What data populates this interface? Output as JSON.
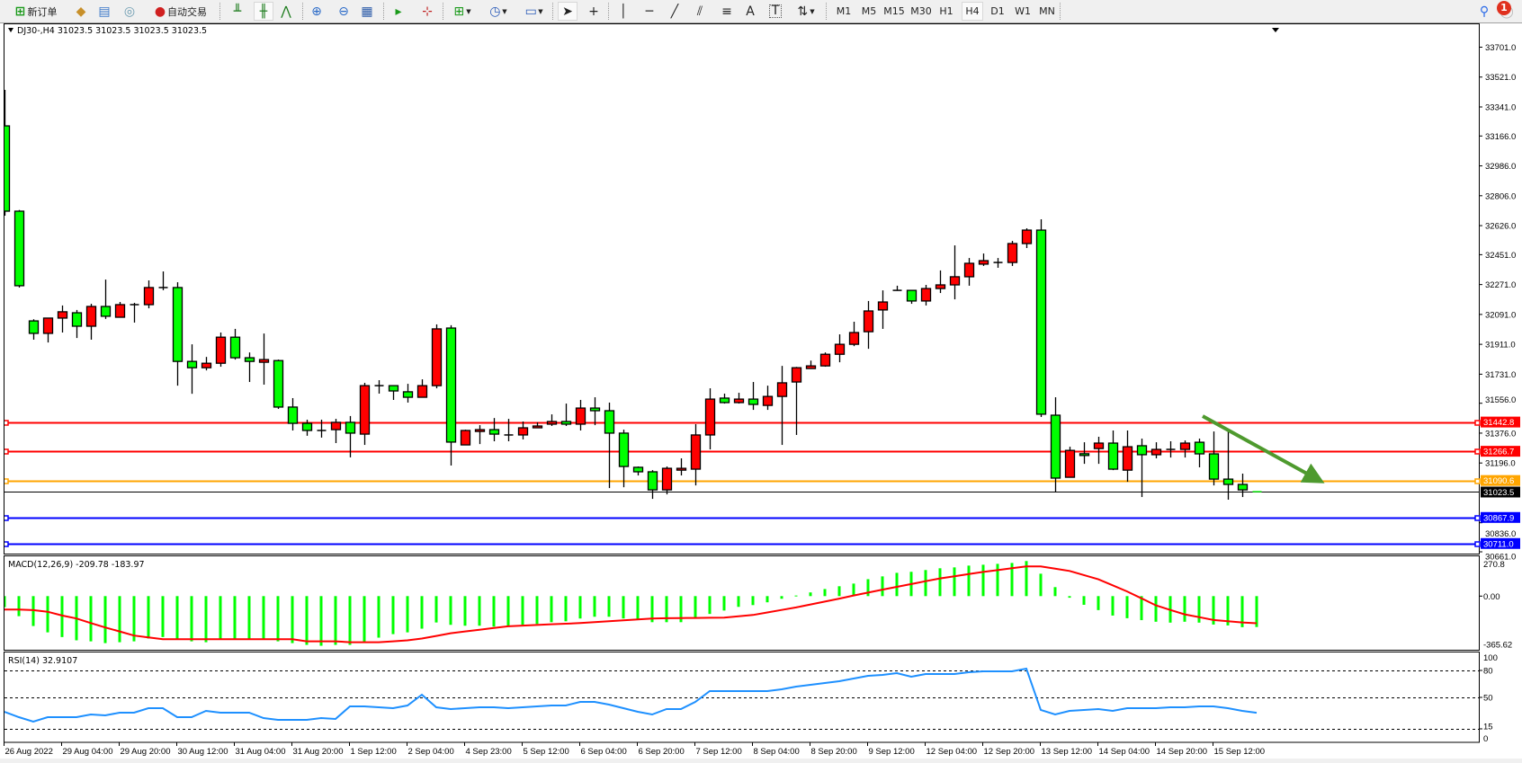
{
  "toolbar": {
    "new_order_label": "新订单",
    "auto_trading_label": "自动交易",
    "timeframes": [
      "M1",
      "M5",
      "M15",
      "M30",
      "H1",
      "H4",
      "D1",
      "W1",
      "MN"
    ],
    "selected_timeframe": "H4",
    "notification_count": "1",
    "tools": [
      "bar-chart",
      "candlestick-chart",
      "line-chart",
      "zoom-in",
      "zoom-out",
      "tile-windows",
      "auto-scroll",
      "chart-shift",
      "new-window",
      "clock",
      "template",
      "cursor",
      "crosshair",
      "vertical-line",
      "horizontal-line",
      "trend-line",
      "equidistant-channel",
      "fibonacci",
      "text-label",
      "text-box",
      "arrows"
    ]
  },
  "chart": {
    "title": "DJ30-,H4  31023.5 31023.5 31023.5 31023.5",
    "up_color": "#ff0000",
    "down_color": "#00ff00",
    "price_axis_labels": [
      "33701.0",
      "33521.0",
      "33341.0",
      "33166.0",
      "32986.0",
      "32806.0",
      "32626.0",
      "32451.0",
      "32271.0",
      "32091.0",
      "31911.0",
      "31731.0",
      "31556.0",
      "31376.0",
      "31196.0",
      "30836.0",
      "30661.0"
    ],
    "time_axis_labels": [
      "26 Aug 2022",
      "29 Aug 04:00",
      "29 Aug 20:00",
      "30 Aug 12:00",
      "31 Aug 04:00",
      "31 Aug 20:00",
      "1 Sep 12:00",
      "2 Sep 04:00",
      "4 Sep 23:00",
      "5 Sep 12:00",
      "6 Sep 04:00",
      "6 Sep 20:00",
      "7 Sep 12:00",
      "8 Sep 04:00",
      "8 Sep 20:00",
      "9 Sep 12:00",
      "12 Sep 04:00",
      "12 Sep 20:00",
      "13 Sep 12:00",
      "14 Sep 04:00",
      "14 Sep 20:00",
      "15 Sep 12:00"
    ],
    "horizontal_lines": [
      {
        "price": 31442.8,
        "label": "31442.8",
        "color": "#ff0000"
      },
      {
        "price": 31266.7,
        "label": "31266.7",
        "color": "#ff0000"
      },
      {
        "price": 31090.6,
        "label": "31090.6",
        "color": "#ffa500"
      },
      {
        "price": 30867.9,
        "label": "30867.9",
        "color": "#0000ff"
      },
      {
        "price": 30711.0,
        "label": "30711.0",
        "color": "#0000ff"
      }
    ],
    "bid": {
      "price": 31023.5,
      "label": "31023.5",
      "color": "#000000"
    },
    "trend_arrow_color": "#4e9a2e"
  },
  "chart_data": {
    "type": "candlestick",
    "symbol": "DJ30-",
    "timeframe": "H4",
    "ylim": [
      30661.0,
      33701.0
    ],
    "ohlc": [
      [
        33227,
        33444,
        32686,
        32713
      ],
      [
        32713,
        32720,
        32253,
        32264
      ],
      [
        32052,
        32062,
        31939,
        31977
      ],
      [
        31977,
        32069,
        31922,
        32069
      ],
      [
        32069,
        32145,
        31982,
        32107
      ],
      [
        32101,
        32118,
        31949,
        32020
      ],
      [
        32020,
        32155,
        31939,
        32139
      ],
      [
        32139,
        32301,
        32064,
        32080
      ],
      [
        32074,
        32166,
        32074,
        32150
      ],
      [
        32150,
        32161,
        32042,
        32150
      ],
      [
        32150,
        32296,
        32128,
        32253
      ],
      [
        32253,
        32350,
        32237,
        32253
      ],
      [
        32253,
        32285,
        31662,
        31808
      ],
      [
        31808,
        31911,
        31613,
        31770
      ],
      [
        31770,
        31835,
        31754,
        31797
      ],
      [
        31797,
        31982,
        31776,
        31954
      ],
      [
        31954,
        32004,
        31819,
        31830
      ],
      [
        31830,
        31862,
        31684,
        31808
      ],
      [
        31803,
        31976,
        31668,
        31819
      ],
      [
        31813,
        31819,
        31522,
        31533
      ],
      [
        31533,
        31587,
        31392,
        31435
      ],
      [
        31435,
        31457,
        31360,
        31392
      ],
      [
        31392,
        31457,
        31349,
        31392
      ],
      [
        31397,
        31462,
        31316,
        31441
      ],
      [
        31441,
        31479,
        31230,
        31376
      ],
      [
        31370,
        31679,
        31305,
        31662
      ],
      [
        31662,
        31695,
        31614,
        31662
      ],
      [
        31662,
        31665,
        31576,
        31630
      ],
      [
        31625,
        31673,
        31560,
        31592
      ],
      [
        31592,
        31700,
        31592,
        31662
      ],
      [
        31662,
        32031,
        31646,
        32004
      ],
      [
        32009,
        32026,
        31181,
        31322
      ],
      [
        31305,
        31397,
        31305,
        31392
      ],
      [
        31386,
        31424,
        31310,
        31397
      ],
      [
        31397,
        31467,
        31327,
        31370
      ],
      [
        31365,
        31462,
        31327,
        31365
      ],
      [
        31365,
        31446,
        31338,
        31408
      ],
      [
        31408,
        31441,
        31408,
        31419
      ],
      [
        31430,
        31489,
        31419,
        31446
      ],
      [
        31446,
        31554,
        31419,
        31430
      ],
      [
        31430,
        31576,
        31392,
        31527
      ],
      [
        31527,
        31592,
        31424,
        31511
      ],
      [
        31511,
        31560,
        31045,
        31376
      ],
      [
        31376,
        31397,
        31050,
        31175
      ],
      [
        31170,
        31175,
        31121,
        31143
      ],
      [
        31143,
        31153,
        30980,
        31034
      ],
      [
        31034,
        31175,
        31007,
        31164
      ],
      [
        31153,
        31224,
        31121,
        31164
      ],
      [
        31159,
        31430,
        31061,
        31365
      ],
      [
        31365,
        31646,
        31278,
        31581
      ],
      [
        31587,
        31614,
        31554,
        31560
      ],
      [
        31560,
        31619,
        31554,
        31581
      ],
      [
        31581,
        31684,
        31516,
        31549
      ],
      [
        31543,
        31662,
        31516,
        31597
      ],
      [
        31597,
        31781,
        31305,
        31679
      ],
      [
        31684,
        31775,
        31365,
        31770
      ],
      [
        31765,
        31813,
        31765,
        31781
      ],
      [
        31781,
        31862,
        31776,
        31851
      ],
      [
        31851,
        31971,
        31803,
        31911
      ],
      [
        31911,
        32047,
        31900,
        31982
      ],
      [
        31987,
        32172,
        31884,
        32112
      ],
      [
        32118,
        32236,
        32004,
        32166
      ],
      [
        32236,
        32264,
        32236,
        32236
      ],
      [
        32236,
        32236,
        32155,
        32172
      ],
      [
        32172,
        32269,
        32145,
        32247
      ],
      [
        32247,
        32356,
        32220,
        32269
      ],
      [
        32269,
        32507,
        32182,
        32318
      ],
      [
        32318,
        32431,
        32264,
        32399
      ],
      [
        32394,
        32458,
        32383,
        32415
      ],
      [
        32404,
        32431,
        32372,
        32404
      ],
      [
        32404,
        32534,
        32383,
        32518
      ],
      [
        32518,
        32610,
        32491,
        32599
      ],
      [
        32599,
        32664,
        31473,
        31490
      ],
      [
        31484,
        31592,
        31023,
        31105
      ],
      [
        31110,
        31294,
        31110,
        31272
      ],
      [
        31252,
        31321,
        31191,
        31250
      ],
      [
        31283,
        31354,
        31191,
        31316
      ],
      [
        31316,
        31392,
        31153,
        31159
      ],
      [
        31153,
        31392,
        31083,
        31294
      ],
      [
        31300,
        31343,
        30991,
        31246
      ],
      [
        31246,
        31321,
        31224,
        31278
      ],
      [
        31278,
        31327,
        31229,
        31278
      ],
      [
        31278,
        31332,
        31229,
        31316
      ],
      [
        31321,
        31343,
        31170,
        31251
      ],
      [
        31251,
        31386,
        31061,
        31099
      ],
      [
        31099,
        31386,
        30975,
        31067
      ],
      [
        31067,
        31132,
        30991,
        31034
      ],
      [
        31023.5,
        31023.5,
        31023.5,
        31023.5
      ]
    ],
    "macd": {
      "label": "MACD(12,26,9) -209.78 -183.97",
      "axis_labels": [
        "270.8",
        "0.00",
        "-365.62"
      ],
      "ylim": [
        -365.62,
        270.8
      ],
      "histogram": [
        -75,
        -136,
        -203,
        -246,
        -278,
        -300,
        -307,
        -319,
        -313,
        -307,
        -288,
        -278,
        -288,
        -307,
        -313,
        -288,
        -288,
        -288,
        -288,
        -307,
        -319,
        -331,
        -337,
        -331,
        -331,
        -313,
        -282,
        -258,
        -246,
        -221,
        -179,
        -195,
        -201,
        -201,
        -207,
        -201,
        -195,
        -189,
        -177,
        -171,
        -152,
        -140,
        -140,
        -152,
        -158,
        -177,
        -177,
        -177,
        -146,
        -121,
        -98,
        -73,
        -61,
        -42,
        -18,
        4,
        25,
        48,
        67,
        85,
        115,
        134,
        158,
        165,
        177,
        189,
        195,
        207,
        213,
        219,
        225,
        238,
        152,
        61,
        -11,
        -59,
        -95,
        -132,
        -150,
        -163,
        -174,
        -180,
        -174,
        -180,
        -193,
        -199,
        -211,
        -209.78
      ],
      "signal": [
        -91,
        -91,
        -95,
        -106,
        -132,
        -152,
        -183,
        -213,
        -240,
        -268,
        -280,
        -292,
        -292,
        -292,
        -292,
        -292,
        -292,
        -292,
        -292,
        -292,
        -292,
        -307,
        -307,
        -307,
        -313,
        -313,
        -313,
        -307,
        -300,
        -288,
        -270,
        -252,
        -240,
        -228,
        -216,
        -205,
        -200,
        -196,
        -191,
        -187,
        -183,
        -177,
        -171,
        -165,
        -158,
        -152,
        -150,
        -149,
        -148,
        -147,
        -146,
        -137,
        -128,
        -111,
        -94,
        -77,
        -57,
        -37,
        -17,
        4,
        24,
        44,
        63,
        82,
        101,
        120,
        135,
        150,
        164,
        176,
        189,
        201,
        201,
        186,
        171,
        143,
        114,
        73,
        32,
        -15,
        -63,
        -94,
        -124,
        -143,
        -162,
        -171,
        -179,
        -183.97
      ],
      "histogram_color": "#00ff00",
      "signal_color": "#ff0000"
    },
    "rsi": {
      "label": "RSI(14) 32.9107",
      "axis_labels": [
        "100",
        "80",
        "50",
        "15",
        "0"
      ],
      "levels": [
        80,
        50,
        15
      ],
      "ylim": [
        0,
        100
      ],
      "values": [
        34,
        28,
        23,
        28,
        28,
        28,
        31,
        30,
        33,
        33,
        38,
        38,
        28,
        28,
        35,
        33,
        33,
        33,
        27,
        25,
        25,
        25,
        27,
        26,
        40,
        40,
        39,
        38,
        41,
        53,
        39,
        37,
        38,
        39,
        39,
        38,
        39,
        40,
        41,
        41,
        45,
        45,
        42,
        38,
        34,
        31,
        37,
        37,
        45,
        57,
        57,
        57,
        57,
        57,
        59,
        62,
        64,
        66,
        68,
        71,
        74,
        75,
        77,
        73,
        76,
        76,
        76,
        78,
        79,
        79,
        79,
        82,
        36,
        31,
        35,
        36,
        37,
        35,
        38,
        38,
        38,
        39,
        39,
        40,
        40,
        38,
        35,
        32.91
      ],
      "color": "#1e90ff"
    }
  }
}
